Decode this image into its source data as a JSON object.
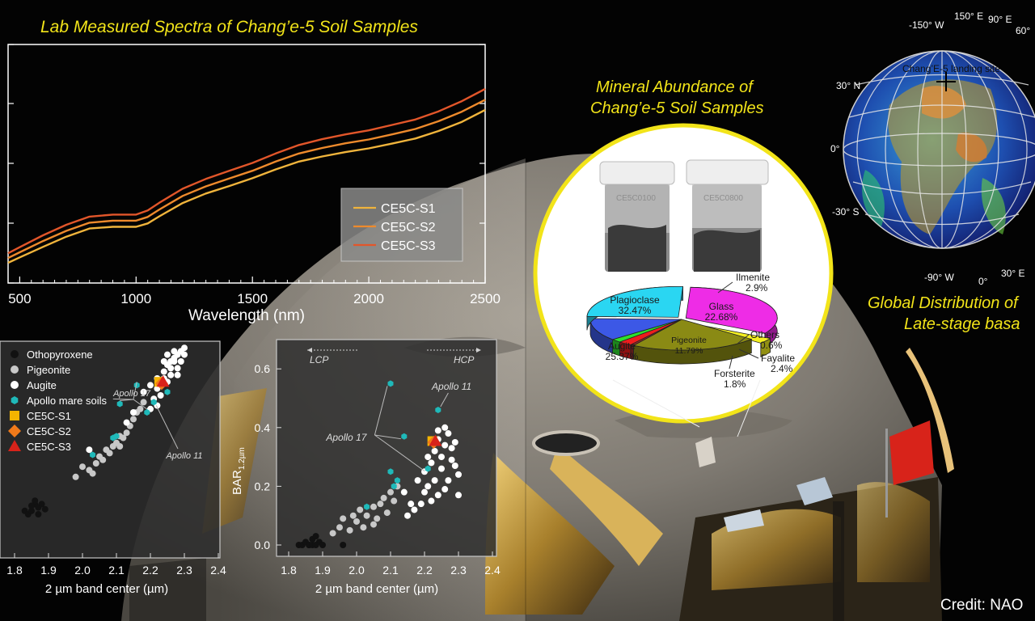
{
  "titles": {
    "spectra": "Lab Measured Spectra of Chang’e-5 Soil Samples",
    "mineral_line1": "Mineral Abundance of",
    "mineral_line2": "Chang’e-5 Soil Samples",
    "global_line1": "Global Distribution of",
    "global_line2": "Late-stage basa",
    "credit": "Credit: NAO"
  },
  "colors": {
    "title_yellow": "#f2e419",
    "s1": "#f0b43c",
    "s2": "#ee8a2c",
    "s3": "#e2562a"
  },
  "chart_data": [
    {
      "type": "line",
      "title": "Lab Measured Spectra of Chang’e-5 Soil Samples",
      "xlabel": "Wavelength (nm)",
      "ylabel": "",
      "xlim": [
        450,
        2500
      ],
      "xticks": [
        500,
        1000,
        1500,
        2000,
        2500
      ],
      "legend_position": "right",
      "series": [
        {
          "name": "CE5C-S1",
          "color": "#f0b43c",
          "x": [
            450,
            500,
            600,
            700,
            800,
            900,
            1000,
            1050,
            1100,
            1200,
            1300,
            1400,
            1500,
            1600,
            1700,
            1800,
            1900,
            2000,
            2100,
            2200,
            2300,
            2400,
            2500
          ],
          "y": [
            0.0,
            0.016,
            0.047,
            0.077,
            0.101,
            0.106,
            0.106,
            0.116,
            0.137,
            0.176,
            0.204,
            0.226,
            0.249,
            0.275,
            0.298,
            0.313,
            0.326,
            0.337,
            0.351,
            0.366,
            0.388,
            0.415,
            0.45
          ]
        },
        {
          "name": "CE5C-S2",
          "color": "#ee8a2c",
          "x": [
            450,
            500,
            600,
            700,
            800,
            900,
            1000,
            1050,
            1100,
            1200,
            1300,
            1400,
            1500,
            1600,
            1700,
            1800,
            1900,
            2000,
            2100,
            2200,
            2300,
            2400,
            2500
          ],
          "y": [
            0.014,
            0.031,
            0.064,
            0.094,
            0.118,
            0.124,
            0.124,
            0.135,
            0.157,
            0.197,
            0.225,
            0.248,
            0.271,
            0.298,
            0.322,
            0.338,
            0.352,
            0.363,
            0.378,
            0.394,
            0.417,
            0.445,
            0.48
          ]
        },
        {
          "name": "CE5C-S3",
          "color": "#e2562a",
          "x": [
            450,
            500,
            600,
            700,
            800,
            900,
            1000,
            1050,
            1100,
            1200,
            1300,
            1400,
            1500,
            1600,
            1700,
            1800,
            1900,
            2000,
            2100,
            2200,
            2300,
            2400,
            2500
          ],
          "y": [
            0.028,
            0.046,
            0.081,
            0.112,
            0.136,
            0.142,
            0.142,
            0.154,
            0.177,
            0.218,
            0.247,
            0.271,
            0.294,
            0.322,
            0.347,
            0.364,
            0.378,
            0.39,
            0.406,
            0.422,
            0.446,
            0.476,
            0.512
          ]
        }
      ]
    },
    {
      "type": "scatter",
      "xlabel": "2 µm band center (µm)",
      "xlim": [
        1.8,
        2.4
      ],
      "xticks": [
        "1.8",
        "1.9",
        "2.0",
        "2.1",
        "2.2",
        "2.3",
        "2.4"
      ],
      "legend_position": "top-left",
      "annotations": [
        {
          "text": "Apollo 17",
          "x": 2.15,
          "y": 1.38
        },
        {
          "text": "Apollo 11",
          "x": 2.27,
          "y": 0.95
        }
      ],
      "series": [
        {
          "name": "Othopyroxene",
          "marker": "circle",
          "color": "#111111",
          "points": [
            [
              1.83,
              0.42
            ],
            [
              1.84,
              0.4
            ],
            [
              1.85,
              0.42
            ],
            [
              1.86,
              0.46
            ],
            [
              1.87,
              0.44
            ],
            [
              1.88,
              0.46
            ],
            [
              1.86,
              0.48
            ],
            [
              1.89,
              0.43
            ],
            [
              1.85,
              0.45
            ],
            [
              1.87,
              0.4
            ]
          ]
        },
        {
          "name": "Pigeonite",
          "marker": "circle",
          "color": "#c8c8c8",
          "points": [
            [
              1.98,
              0.62
            ],
            [
              2.0,
              0.68
            ],
            [
              2.02,
              0.66
            ],
            [
              2.04,
              0.7
            ],
            [
              2.05,
              0.74
            ],
            [
              2.07,
              0.78
            ],
            [
              2.09,
              0.8
            ],
            [
              2.1,
              0.82
            ],
            [
              2.08,
              0.76
            ],
            [
              2.11,
              0.8
            ],
            [
              2.12,
              0.85
            ],
            [
              2.14,
              0.92
            ],
            [
              2.15,
              0.96
            ],
            [
              2.16,
              1.0
            ],
            [
              2.13,
              0.88
            ],
            [
              2.06,
              0.72
            ],
            [
              2.03,
              0.64
            ],
            [
              2.11,
              0.86
            ],
            [
              2.17,
              1.02
            ],
            [
              2.18,
              1.06
            ]
          ]
        },
        {
          "name": "Augite",
          "marker": "circle",
          "color": "#ffffff",
          "points": [
            [
              2.18,
              1.12
            ],
            [
              2.2,
              1.16
            ],
            [
              2.22,
              1.2
            ],
            [
              2.24,
              1.24
            ],
            [
              2.25,
              1.28
            ],
            [
              2.26,
              1.3
            ],
            [
              2.27,
              1.32
            ],
            [
              2.28,
              1.34
            ],
            [
              2.29,
              1.36
            ],
            [
              2.3,
              1.38
            ],
            [
              2.24,
              1.2
            ],
            [
              2.26,
              1.22
            ],
            [
              2.28,
              1.26
            ],
            [
              2.22,
              1.14
            ],
            [
              2.25,
              1.18
            ],
            [
              2.27,
              1.3
            ],
            [
              2.29,
              1.3
            ],
            [
              2.23,
              1.1
            ],
            [
              2.21,
              1.08
            ],
            [
              2.26,
              1.26
            ],
            [
              2.28,
              1.22
            ],
            [
              2.3,
              1.34
            ],
            [
              2.24,
              1.3
            ],
            [
              2.27,
              1.36
            ],
            [
              2.25,
              1.34
            ],
            [
              2.2,
              1.02
            ],
            [
              2.22,
              1.04
            ],
            [
              2.13,
              0.94
            ],
            [
              2.15,
              1.0
            ],
            [
              2.02,
              0.78
            ]
          ]
        },
        {
          "name": "Apollo mare soils",
          "marker": "hexagon",
          "color": "#1fb9b9",
          "points": [
            [
              2.03,
              0.75
            ],
            [
              2.09,
              0.85
            ],
            [
              2.1,
              0.86
            ],
            [
              2.11,
              1.05
            ],
            [
              2.16,
              1.16
            ],
            [
              2.19,
              1.0
            ],
            [
              2.21,
              1.06
            ],
            [
              2.25,
              1.12
            ]
          ]
        },
        {
          "name": "CE5C-S1",
          "marker": "square",
          "color": "#f5b400",
          "points": [
            [
              2.226,
              1.18
            ]
          ]
        },
        {
          "name": "CE5C-S2",
          "marker": "diamond",
          "color": "#f07a1a",
          "points": [
            [
              2.233,
              1.17
            ]
          ]
        },
        {
          "name": "CE5C-S3",
          "marker": "triangle",
          "color": "#d8231a",
          "points": [
            [
              2.237,
              1.18
            ]
          ]
        }
      ]
    },
    {
      "type": "scatter",
      "xlabel": "2 µm band center (µm)",
      "ylabel": "BAR",
      "ylabel_sub": "1.2µm",
      "xlim": [
        1.8,
        2.4
      ],
      "ylim": [
        -0.05,
        0.68
      ],
      "xticks": [
        "1.8",
        "1.9",
        "2.0",
        "2.1",
        "2.2",
        "2.3",
        "2.4"
      ],
      "yticks": [
        "0.0",
        "0.2",
        "0.4",
        "0.6"
      ],
      "arrow_labels": {
        "left": "LCP",
        "right": "HCP"
      },
      "annotations": [
        {
          "text": "Apollo 17",
          "x": 1.97,
          "y": 0.35
        },
        {
          "text": "Apollo 11",
          "x": 2.28,
          "y": 0.53
        }
      ],
      "series": [
        {
          "name": "Othopyroxene",
          "marker": "circle",
          "color": "#111111",
          "points": [
            [
              1.83,
              0.0
            ],
            [
              1.84,
              0.0
            ],
            [
              1.85,
              0.01
            ],
            [
              1.86,
              0.0
            ],
            [
              1.87,
              0.02
            ],
            [
              1.86,
              0.0
            ],
            [
              1.88,
              0.03
            ],
            [
              1.89,
              0.01
            ],
            [
              1.87,
              0.0
            ],
            [
              1.9,
              0.0
            ],
            [
              1.88,
              0.0
            ],
            [
              1.96,
              0.0
            ]
          ]
        },
        {
          "name": "Pigeonite",
          "marker": "circle",
          "color": "#c8c8c8",
          "points": [
            [
              1.93,
              0.04
            ],
            [
              1.95,
              0.06
            ],
            [
              1.96,
              0.09
            ],
            [
              1.98,
              0.05
            ],
            [
              2.0,
              0.08
            ],
            [
              2.01,
              0.12
            ],
            [
              2.03,
              0.1
            ],
            [
              2.05,
              0.13
            ],
            [
              2.06,
              0.09
            ],
            [
              2.07,
              0.14
            ],
            [
              2.08,
              0.16
            ],
            [
              2.09,
              0.11
            ],
            [
              2.1,
              0.18
            ],
            [
              2.12,
              0.2
            ],
            [
              2.11,
              0.15
            ],
            [
              2.05,
              0.07
            ],
            [
              2.02,
              0.06
            ],
            [
              1.99,
              0.1
            ]
          ]
        },
        {
          "name": "Augite",
          "marker": "circle",
          "color": "#ffffff",
          "points": [
            [
              2.2,
              0.25
            ],
            [
              2.22,
              0.28
            ],
            [
              2.23,
              0.32
            ],
            [
              2.24,
              0.36
            ],
            [
              2.25,
              0.3
            ],
            [
              2.26,
              0.34
            ],
            [
              2.27,
              0.38
            ],
            [
              2.28,
              0.33
            ],
            [
              2.29,
              0.27
            ],
            [
              2.3,
              0.24
            ],
            [
              2.21,
              0.2
            ],
            [
              2.23,
              0.22
            ],
            [
              2.25,
              0.26
            ],
            [
              2.27,
              0.22
            ],
            [
              2.28,
              0.29
            ],
            [
              2.24,
              0.39
            ],
            [
              2.26,
              0.4
            ],
            [
              2.29,
              0.35
            ],
            [
              2.18,
              0.22
            ],
            [
              2.16,
              0.14
            ],
            [
              2.14,
              0.18
            ],
            [
              2.15,
              0.1
            ],
            [
              2.17,
              0.12
            ],
            [
              2.19,
              0.14
            ],
            [
              2.2,
              0.18
            ],
            [
              2.22,
              0.15
            ],
            [
              2.3,
              0.17
            ],
            [
              2.26,
              0.19
            ],
            [
              2.24,
              0.17
            ],
            [
              2.21,
              0.3
            ]
          ]
        },
        {
          "name": "Apollo mare soils",
          "marker": "hexagon",
          "color": "#1fb9b9",
          "points": [
            [
              2.1,
              0.55
            ],
            [
              2.24,
              0.46
            ],
            [
              2.14,
              0.37
            ],
            [
              2.21,
              0.26
            ],
            [
              2.1,
              0.25
            ],
            [
              2.12,
              0.22
            ],
            [
              2.11,
              0.2
            ],
            [
              2.03,
              0.13
            ]
          ]
        },
        {
          "name": "CE5C-S1",
          "marker": "square",
          "color": "#f5b400",
          "points": [
            [
              2.223,
              0.354
            ]
          ]
        },
        {
          "name": "CE5C-S2",
          "marker": "diamond",
          "color": "#f07a1a",
          "points": [
            [
              2.227,
              0.35
            ]
          ]
        },
        {
          "name": "CE5C-S3",
          "marker": "triangle",
          "color": "#d8231a",
          "points": [
            [
              2.232,
              0.354
            ]
          ]
        }
      ]
    },
    {
      "type": "pie",
      "title": "Mineral Abundance of Chang’e-5 Soil Samples",
      "slices": [
        {
          "label": "Plagioclase",
          "value": 32.47,
          "display": "32.47%",
          "color": "#ee2ce6"
        },
        {
          "label": "Ilmenite",
          "value": 2.9,
          "display": "2.9%",
          "color": "#f4f020"
        },
        {
          "label": "Glass",
          "value": 22.68,
          "display": "22.68%",
          "color": "#8a8a14"
        },
        {
          "label": "Others",
          "value": 0.6,
          "display": "0.6%",
          "color": "#9a2a2a"
        },
        {
          "label": "Fayalite",
          "value": 2.4,
          "display": "2.4%",
          "color": "#ee1d1d"
        },
        {
          "label": "Forsterite",
          "value": 1.8,
          "display": "1.8%",
          "color": "#2ee02e"
        },
        {
          "label": "Pigeonite",
          "value": 11.79,
          "display": "11.79%",
          "color": "#3c58e6"
        },
        {
          "label": "Augite",
          "value": 25.37,
          "display": "25.37%",
          "color": "#2ad6f2"
        }
      ]
    }
  ],
  "jars": [
    {
      "label": "CE5C0100"
    },
    {
      "label": "CE5C0800"
    }
  ],
  "globe": {
    "top_labels": [
      "-150° W",
      "150° E",
      "90° E",
      "60°"
    ],
    "left_labels": [
      "30° N",
      "0°",
      "-30° S"
    ],
    "bottom_labels": [
      "-90° W",
      "0°",
      "30° E"
    ],
    "site_label": "Chang’E-5 landing site"
  }
}
